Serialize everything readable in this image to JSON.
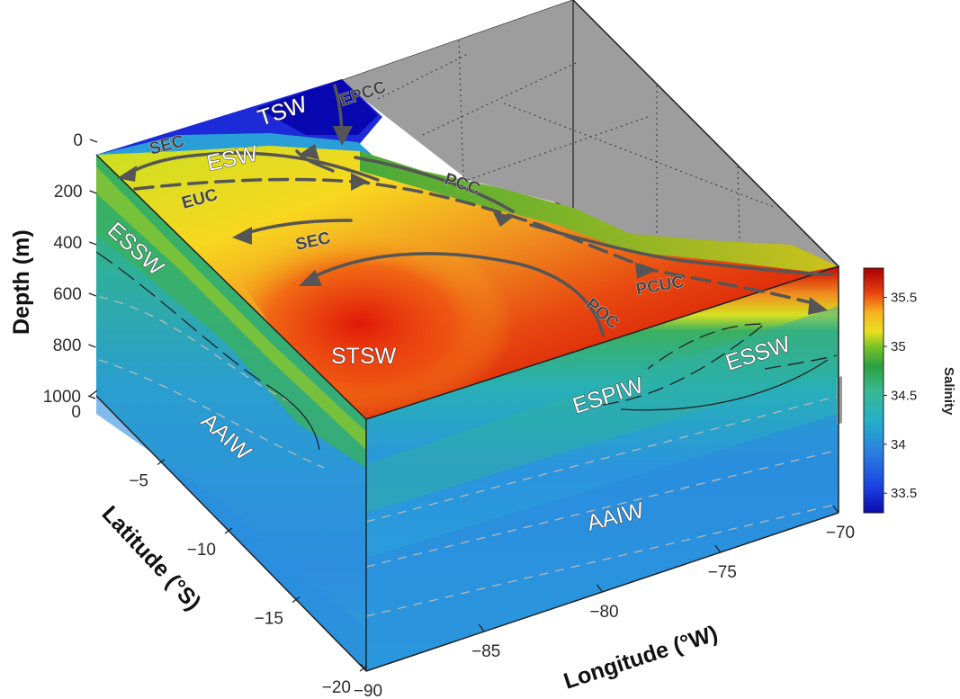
{
  "chart_data": {
    "type": "heatmap",
    "variable": "Salinity",
    "axes": {
      "depth": {
        "label": "Depth (m)",
        "ticks": [
          0,
          200,
          400,
          600,
          800,
          1000
        ],
        "range": [
          0,
          1000
        ]
      },
      "latitude": {
        "label": "Latitude (°S)",
        "ticks": [
          0,
          -5,
          -10,
          -15,
          -20
        ],
        "range": [
          0,
          -20
        ]
      },
      "longitude": {
        "label": "Longitude (°W)",
        "ticks": [
          -90,
          -85,
          -80,
          -75,
          -70
        ],
        "range": [
          -90,
          -70
        ]
      }
    },
    "colorbar": {
      "label": "Salinity",
      "ticks": [
        33.5,
        34,
        34.5,
        35,
        35.5
      ],
      "range": [
        33.3,
        35.8
      ],
      "colormap": [
        "#0a0aa8",
        "#1a3fe0",
        "#2a80e0",
        "#25b0c8",
        "#3ab890",
        "#2aa040",
        "#5cb82a",
        "#d8e020",
        "#f8d020",
        "#f09020",
        "#e83010",
        "#a80000"
      ]
    },
    "water_masses": [
      "TSW",
      "ESW",
      "ESSW",
      "STSW",
      "AAIW",
      "ESPIW",
      "ESSW",
      "AAIW"
    ],
    "currents": [
      "EPCC",
      "SEC",
      "EUC",
      "SEC",
      "PCC",
      "PCUC",
      "POC"
    ],
    "grid": true
  }
}
